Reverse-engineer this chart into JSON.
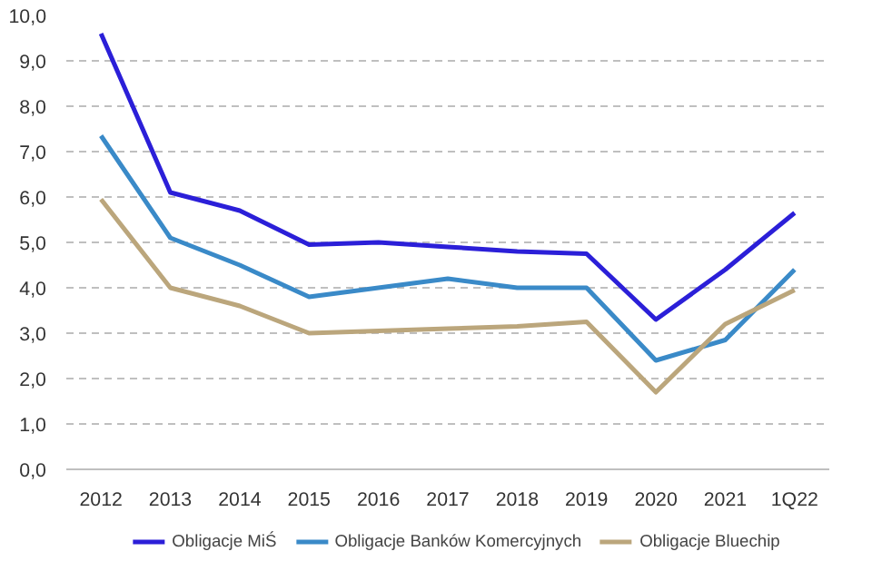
{
  "chart_data": {
    "type": "line",
    "categories": [
      "2012",
      "2013",
      "2014",
      "2015",
      "2016",
      "2017",
      "2018",
      "2019",
      "2020",
      "2021",
      "1Q22"
    ],
    "series": [
      {
        "name": "Obligacje MiŚ",
        "color": "#2b1fd8",
        "values": [
          9.6,
          6.1,
          5.7,
          4.95,
          5.0,
          4.9,
          4.8,
          4.75,
          3.3,
          4.4,
          5.65
        ]
      },
      {
        "name": "Obligacje Banków Komercyjnych",
        "color": "#3a8ac8",
        "values": [
          7.35,
          5.1,
          4.5,
          3.8,
          4.0,
          4.2,
          4.0,
          4.0,
          2.4,
          2.85,
          4.4
        ]
      },
      {
        "name": "Obligacje Bluechip",
        "color": "#bba67c",
        "values": [
          5.95,
          4.0,
          3.6,
          3.0,
          3.05,
          3.1,
          3.15,
          3.25,
          1.7,
          3.2,
          3.95
        ]
      }
    ],
    "ylim": [
      0,
      10
    ],
    "yticks": [
      {
        "value": 0,
        "label": "0,0"
      },
      {
        "value": 1,
        "label": "1,0"
      },
      {
        "value": 2,
        "label": "2,0"
      },
      {
        "value": 3,
        "label": "3,0"
      },
      {
        "value": 4,
        "label": "4,0"
      },
      {
        "value": 5,
        "label": "5,0"
      },
      {
        "value": 6,
        "label": "6,0"
      },
      {
        "value": 7,
        "label": "7,0"
      },
      {
        "value": 8,
        "label": "8,0"
      },
      {
        "value": 9,
        "label": "9,0"
      },
      {
        "value": 10,
        "label": "10,0"
      }
    ],
    "grid": "y",
    "legend": "bottom",
    "line_style": "solid"
  }
}
